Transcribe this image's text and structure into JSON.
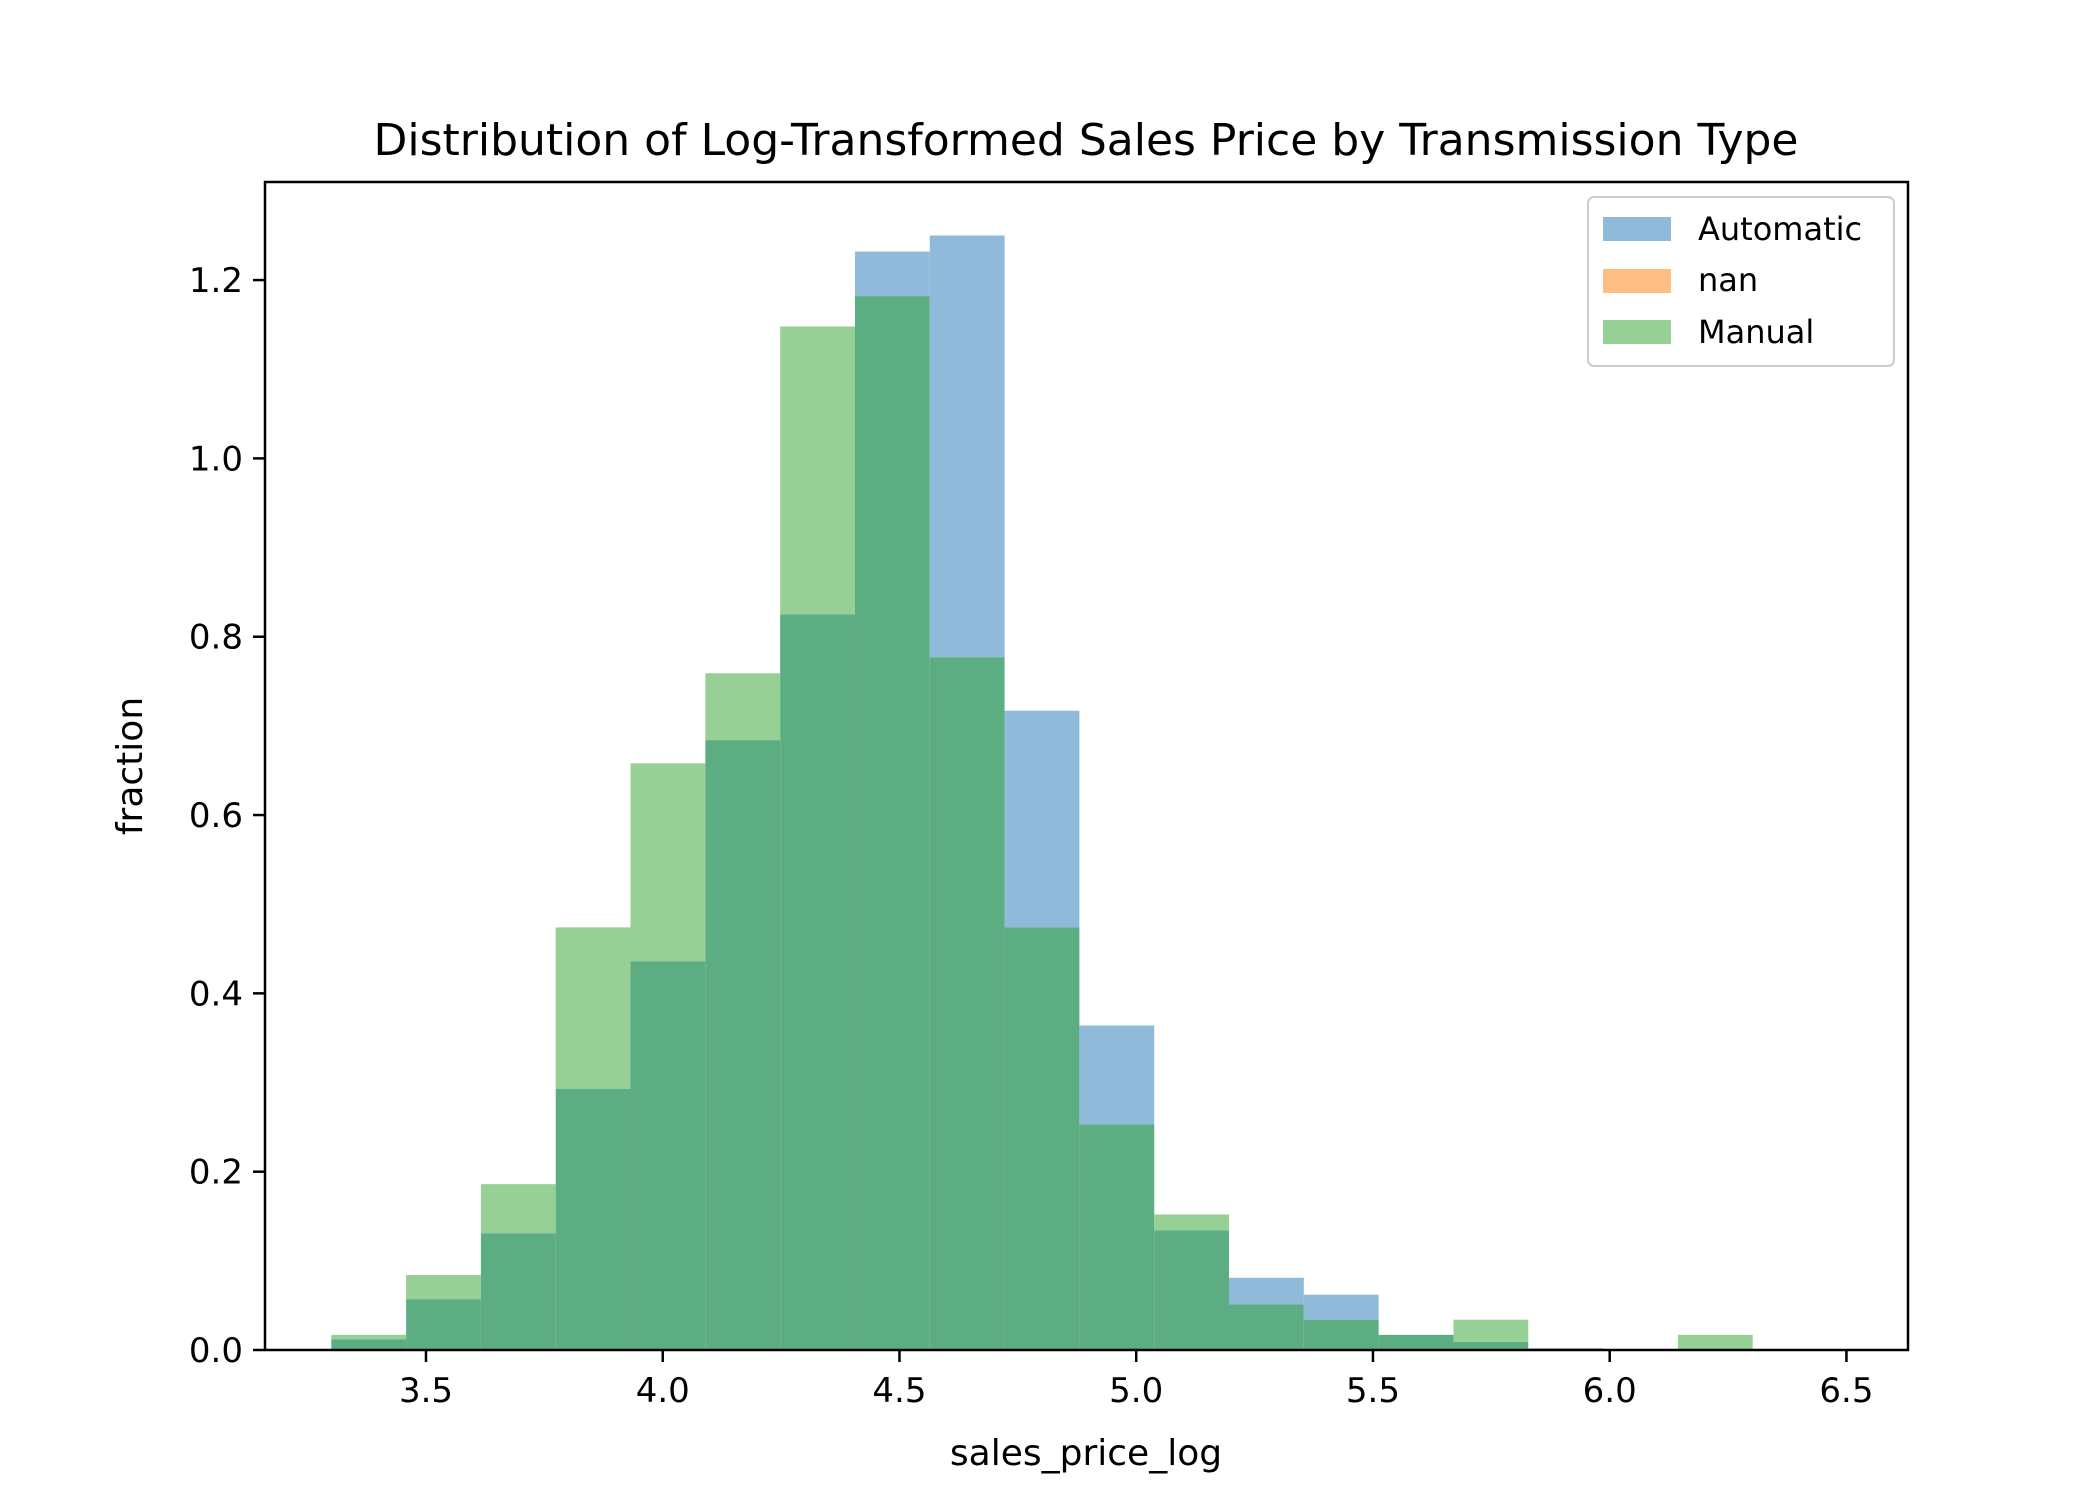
{
  "chart_data": {
    "type": "histogram",
    "title": "Distribution of Log-Transformed Sales Price by Transmission Type",
    "xlabel": "sales_price_log",
    "ylabel": "fraction",
    "xlim": [
      3.16,
      6.63
    ],
    "ylim": [
      0,
      1.31
    ],
    "x_ticks": [
      "3.5",
      "4.0",
      "4.5",
      "5.0",
      "5.5",
      "6.0",
      "6.5"
    ],
    "y_ticks": [
      "0.0",
      "0.2",
      "0.4",
      "0.6",
      "0.8",
      "1.0",
      "1.2"
    ],
    "bin_edges": [
      3.3,
      3.458,
      3.616,
      3.774,
      3.932,
      4.09,
      4.248,
      4.406,
      4.564,
      4.722,
      4.88,
      5.038,
      5.196,
      5.354,
      5.512,
      5.67,
      5.828,
      5.986,
      6.144,
      6.302,
      6.46
    ],
    "legend_position": "upper right",
    "series": [
      {
        "name": "Automatic",
        "color": "#8fbad9",
        "values": [
          0.012,
          0.057,
          0.131,
          0.293,
          0.436,
          0.684,
          0.825,
          1.232,
          1.25,
          0.717,
          0.364,
          0.134,
          0.081,
          0.062,
          0.017,
          0.009,
          0.002,
          0.001,
          0.0,
          0.0
        ]
      },
      {
        "name": "nan",
        "color": "#ffbe86",
        "values": [
          0,
          0,
          0,
          0,
          0,
          0,
          0,
          0,
          0,
          0,
          0,
          0,
          0,
          0,
          0,
          0,
          0,
          0,
          0,
          0
        ]
      },
      {
        "name": "Manual",
        "color": "#96d094",
        "values": [
          0.017,
          0.084,
          0.186,
          0.474,
          0.658,
          0.759,
          1.148,
          1.182,
          0.777,
          0.474,
          0.253,
          0.152,
          0.051,
          0.034,
          0.017,
          0.034,
          0.0,
          0.0,
          0.017,
          0.0
        ]
      }
    ]
  },
  "overlap_color": "#5cad82"
}
